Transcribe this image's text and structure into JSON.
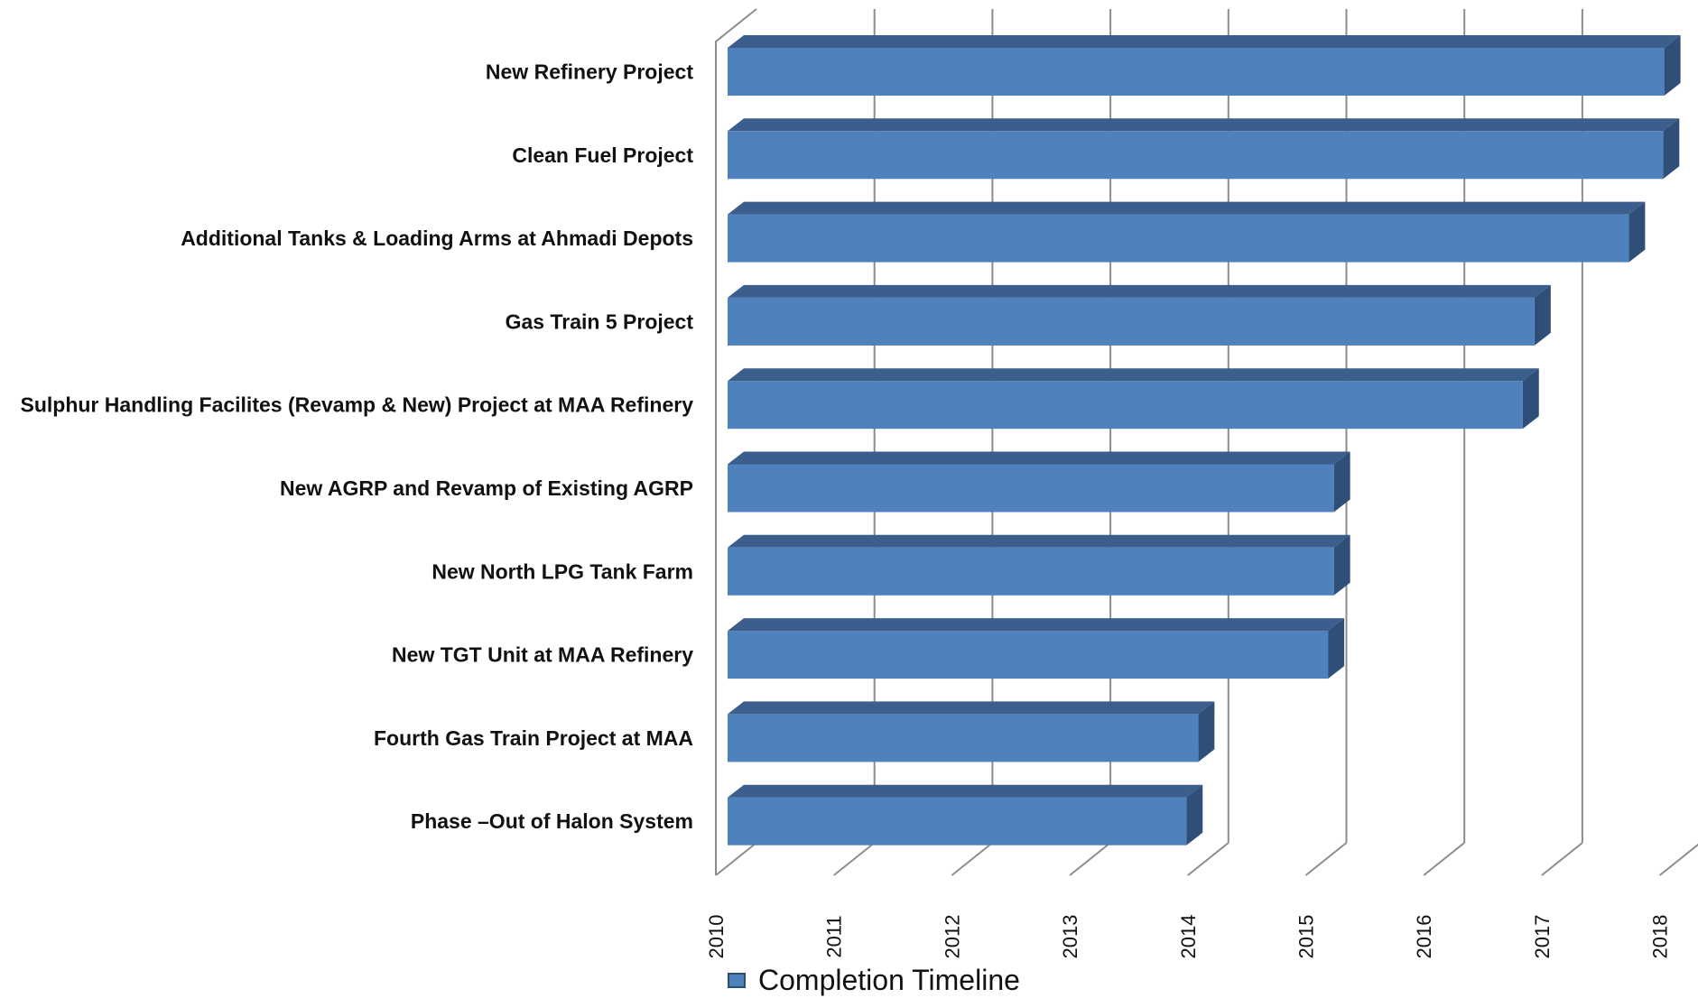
{
  "chart_data": {
    "type": "bar",
    "orientation": "horizontal",
    "three_d": true,
    "title": "",
    "xlabel": "",
    "ylabel": "",
    "xlim": [
      2010,
      2018
    ],
    "x_ticks": [
      "2010",
      "2011",
      "2012",
      "2013",
      "2014",
      "2015",
      "2016",
      "2017",
      "2018"
    ],
    "grid": true,
    "legend_position": "bottom",
    "categories": [
      "New Refinery Project",
      "Clean Fuel Project",
      "Additional Tanks & Loading Arms at Ahmadi Depots",
      "Gas Train 5 Project",
      "Sulphur Handling Facilites (Revamp & New) Project at MAA Refinery",
      "New AGRP and Revamp of Existing AGRP",
      "New North LPG Tank Farm",
      "New TGT Unit at MAA Refinery",
      "Fourth Gas Train Project at MAA",
      "Phase –Out of Halon System"
    ],
    "series": [
      {
        "name": "Completion Timeline",
        "color": "#4f81bd",
        "values": [
          2018.0,
          2017.99,
          2017.7,
          2016.9,
          2016.8,
          2015.2,
          2015.2,
          2015.15,
          2014.05,
          2013.95
        ]
      }
    ]
  },
  "colors": {
    "bar_front": "#4f81bd",
    "bar_top": "#3b5e8c",
    "bar_side": "#2f4f78",
    "axis": "#8c8c8c"
  }
}
